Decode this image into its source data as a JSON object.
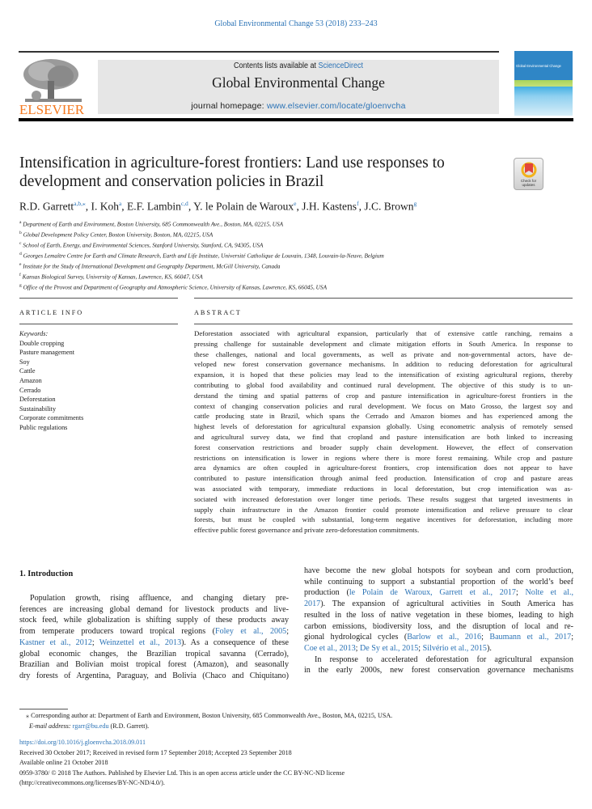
{
  "header": {
    "citation": "Global Environmental Change 53 (2018) 233–243",
    "contents_prefix": "Contents lists available at ",
    "contents_link": "ScienceDirect",
    "journal_title": "Global Environmental Change",
    "homepage_prefix": "journal homepage: ",
    "homepage_link": "www.elsevier.com/locate/gloenvcha",
    "publisher_logo": "ELSEVIER",
    "cover_title": "Global Environmental Change",
    "brand_color": "#f47920",
    "link_color": "#2b73b6"
  },
  "article": {
    "title": "Intensification in agriculture-forest frontiers: Land use responses to development and conservation policies in Brazil",
    "badge": "Check for updates",
    "authors": [
      {
        "name": "R.D. Garrett",
        "sup": "a,b,⁎"
      },
      {
        "name": "I. Koh",
        "sup": "a"
      },
      {
        "name": "E.F. Lambin",
        "sup": "c,d"
      },
      {
        "name": "Y. le Polain de Waroux",
        "sup": "e"
      },
      {
        "name": "J.H. Kastens",
        "sup": "f"
      },
      {
        "name": "J.C. Brown",
        "sup": "g"
      }
    ],
    "affiliations": [
      {
        "sup": "a",
        "text": "Department of Earth and Environment, Boston University, 685 Commonwealth Ave., Boston, MA, 02215, USA"
      },
      {
        "sup": "b",
        "text": "Global Development Policy Center, Boston University, Boston, MA, 02215, USA"
      },
      {
        "sup": "c",
        "text": "School of Earth, Energy, and Environmental Sciences, Stanford University, Stanford, CA, 94305, USA"
      },
      {
        "sup": "d",
        "text": "Georges Lemaître Centre for Earth and Climate Research, Earth and Life Institute, Université Catholique de Louvain, 1348, Louvain-la-Neuve, Belgium"
      },
      {
        "sup": "e",
        "text": "Institute for the Study of International Development and Geography Department, McGill University, Canada"
      },
      {
        "sup": "f",
        "text": "Kansas Biological Survey, University of Kansas, Lawrence, KS, 66047, USA"
      },
      {
        "sup": "g",
        "text": "Office of the Provost and Department of Geography and Atmospheric Science, University of Kansas, Lawrence, KS, 66045, USA"
      }
    ]
  },
  "article_info": {
    "heading": "ARTICLE INFO",
    "keywords_label": "Keywords:",
    "keywords": [
      "Double cropping",
      "Pasture management",
      "Soy",
      "Cattle",
      "Amazon",
      "Cerrado",
      "Deforestation",
      "Sustainability",
      "Corporate commitments",
      "Public regulations"
    ]
  },
  "abstract": {
    "heading": "ABSTRACT",
    "lines": [
      "Deforestation associated with agricultural expansion, particularly that of extensive cattle ranching, remains a",
      "pressing challenge for sustainable development and climate mitigation efforts in South America. In response to",
      "these challenges, national and local governments, as well as private and non-governmental actors, have de-",
      "veloped new forest conservation governance mechanisms. In addition to reducing deforestation for agricultural",
      "expansion, it is hoped that these policies may lead to the intensification of existing agricultural regions, thereby",
      "contributing to global food availability and continued rural development. The objective of this study is to un-",
      "derstand the timing and spatial patterns of crop and pasture intensification in agriculture-forest frontiers in the",
      "context of changing conservation policies and rural development. We focus on Mato Grosso, the largest soy and",
      "cattle producing state in Brazil, which spans the Cerrado and Amazon biomes and has experienced among the",
      "highest levels of deforestation for agricultural expansion globally. Using econometric analysis of remotely sensed",
      "and agricultural survey data, we find that cropland and pasture intensification are both linked to increasing",
      "forest conservation restrictions and broader supply chain development. However, the effect of conservation",
      "restrictions on intensification is lower in regions where there is more forest remaining. While crop and pasture",
      "area dynamics are often coupled in agriculture-forest frontiers, crop intensification does not appear to have",
      "contributed to pasture intensification through animal feed production. Intensification of crop and pasture areas",
      "was associated with temporary, immediate reductions in local deforestation, but crop intensification was as-",
      "sociated with increased deforestation over longer time periods. These results suggest that targeted investments in",
      "supply chain infrastructure in the Amazon frontier could promote intensification and relieve pressure to clear",
      "forests, but must be coupled with substantial, long-term negative incentives for deforestation, including more",
      "effective public forest governance and private zero-deforestation commitments."
    ]
  },
  "introduction": {
    "heading": "1.  Introduction",
    "left_lines": [
      {
        "indent": true,
        "segs": [
          {
            "t": "Population growth, rising affluence, and changing dietary pre-"
          }
        ]
      },
      {
        "segs": [
          {
            "t": "ferences are increasing global demand for livestock products and live-"
          }
        ]
      },
      {
        "segs": [
          {
            "t": "stock feed, while globalization is shifting supply of these products away"
          }
        ]
      },
      {
        "segs": [
          {
            "t": "from temperate producers toward tropical regions ("
          },
          {
            "t": "Foley et al., 2005",
            "cite": true
          },
          {
            "t": ";"
          }
        ]
      },
      {
        "segs": [
          {
            "t": "Kastner et al., 2012",
            "cite": true
          },
          {
            "t": "; "
          },
          {
            "t": "Weinzettel et al., 2013",
            "cite": true
          },
          {
            "t": "). As a consequence of these"
          }
        ]
      },
      {
        "segs": [
          {
            "t": "global economic changes, the Brazilian tropical savanna (Cerrado),"
          }
        ]
      },
      {
        "segs": [
          {
            "t": "Brazilian and Bolivian moist tropical forest (Amazon), and seasonally"
          }
        ]
      },
      {
        "segs": [
          {
            "t": "dry forests of Argentina, Paraguay, and Bolivia (Chaco and Chiquitano)"
          }
        ]
      }
    ],
    "right_lines": [
      {
        "segs": [
          {
            "t": "have become the new global hotspots for soybean and corn production,"
          }
        ]
      },
      {
        "segs": [
          {
            "t": "while continuing to support a substantial proportion of the world’s beef"
          }
        ]
      },
      {
        "segs": [
          {
            "t": "production ("
          },
          {
            "t": "le Polain de Waroux, Garrett et al., 2017",
            "cite": true
          },
          {
            "t": "; "
          },
          {
            "t": "Nolte et al.,",
            "cite": true
          }
        ]
      },
      {
        "segs": [
          {
            "t": "2017",
            "cite": true
          },
          {
            "t": "). The expansion of agricultural activities in South America has"
          }
        ]
      },
      {
        "segs": [
          {
            "t": "resulted in the loss of native vegetation in these biomes, leading to high"
          }
        ]
      },
      {
        "segs": [
          {
            "t": "carbon emissions, biodiversity loss, and the disruption of local and re-"
          }
        ]
      },
      {
        "segs": [
          {
            "t": "gional hydrological cycles ("
          },
          {
            "t": "Barlow et al., 2016",
            "cite": true
          },
          {
            "t": "; "
          },
          {
            "t": "Baumann et al., 2017",
            "cite": true
          },
          {
            "t": ";"
          }
        ]
      },
      {
        "last": true,
        "segs": [
          {
            "t": "Coe et al., 2013",
            "cite": true
          },
          {
            "t": "; "
          },
          {
            "t": "De Sy et al., 2015",
            "cite": true
          },
          {
            "t": "; "
          },
          {
            "t": "Silvério et al., 2015",
            "cite": true
          },
          {
            "t": ")."
          }
        ]
      },
      {
        "indent": true,
        "segs": [
          {
            "t": "In response to accelerated deforestation for agricultural expansion"
          }
        ]
      },
      {
        "segs": [
          {
            "t": "in the early 2000s, new forest conservation governance mechanisms"
          }
        ]
      }
    ]
  },
  "footnote": {
    "corresponding": "⁎ Corresponding author at: Department of Earth and Environment, Boston University, 685 Commonwealth Ave., Boston, MA, 02215, USA.",
    "email_label": "E-mail address: ",
    "email": "rgarr@bu.edu",
    "email_suffix": " (R.D. Garrett)."
  },
  "meta": {
    "doi": "https://doi.org/10.1016/j.gloenvcha.2018.09.011",
    "received": "Received 30 October 2017; Received in revised form 17 September 2018; Accepted 23 September 2018",
    "available": "Available online 21 October 2018",
    "copyright": "0959-3780/ © 2018 The Authors. Published by Elsevier Ltd. This is an open access article under the CC BY-NC-ND license",
    "license_url": "(http://creativecommons.org/licenses/BY-NC-ND/4.0/)."
  }
}
